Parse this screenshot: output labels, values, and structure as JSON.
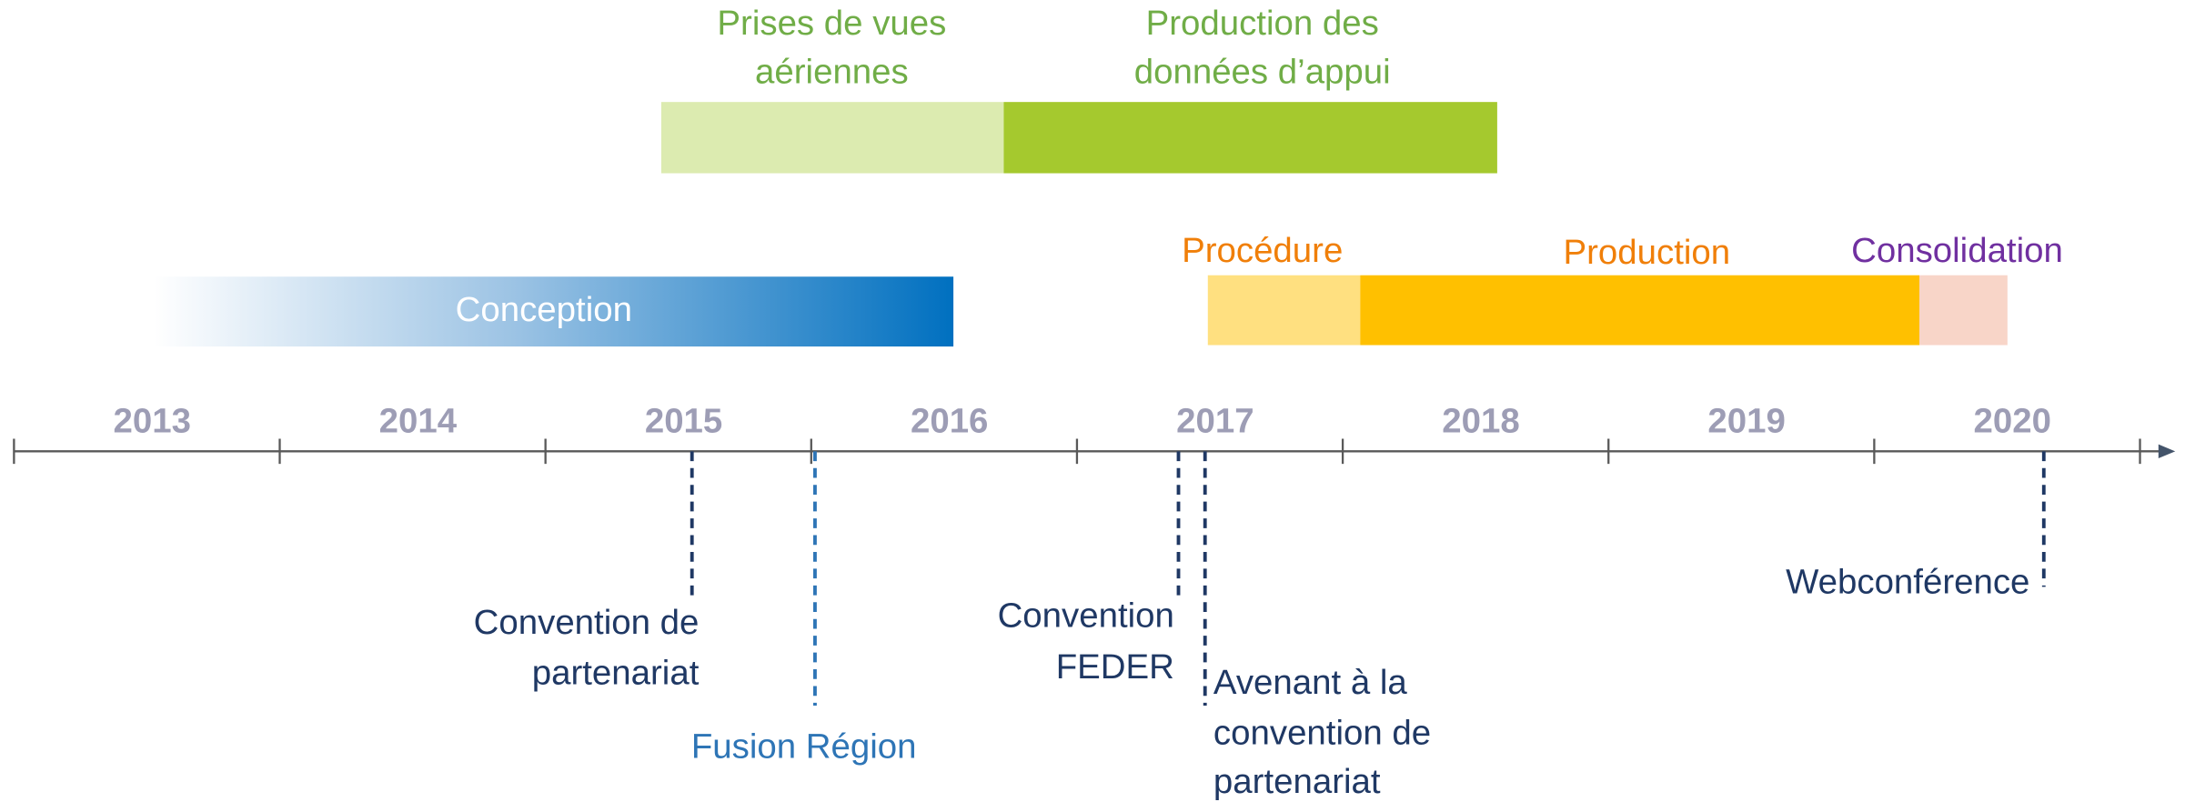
{
  "years": [
    "2013",
    "2014",
    "2015",
    "2016",
    "2017",
    "2018",
    "2019",
    "2020"
  ],
  "phases": {
    "aerial": [
      "Prises de vues",
      "aériennes"
    ],
    "support": [
      "Production des",
      "données d’appui"
    ],
    "conception": "Conception",
    "procedure": "Procédure",
    "production": "Production",
    "consolidation": "Consolidation"
  },
  "milestones": {
    "partnership": [
      "Convention de",
      "partenariat"
    ],
    "merger": "Fusion Région",
    "feder": [
      "Convention",
      "FEDER"
    ],
    "amendment": [
      "Avenant à la",
      "convention de",
      "partenariat"
    ],
    "webconference": "Webconférence"
  }
}
